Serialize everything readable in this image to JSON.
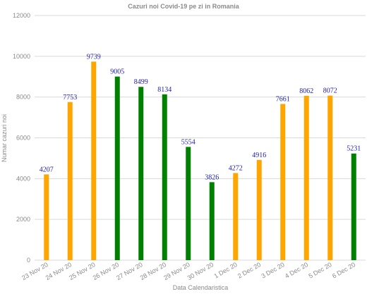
{
  "chart_data": {
    "type": "bar",
    "title": "Cazuri noi Covid-19 pe zi in Romania",
    "xlabel": "Data Calendaristica",
    "ylabel": "Numar cazuri noi",
    "ylim": [
      0,
      12000
    ],
    "yticks": [
      0,
      2000,
      4000,
      6000,
      8000,
      10000,
      12000
    ],
    "grid": true,
    "categories": [
      "23 Nov 20",
      "24 Nov 20",
      "25 Nov 20",
      "26 Nov 20",
      "27 Nov 20",
      "28 Nov 20",
      "29 Nov 20",
      "30 Nov 20",
      "1 Dec 20",
      "2 Dec 20",
      "3 Dec 20",
      "4 Dec 20",
      "5 Dec 20",
      "6 Dec 20"
    ],
    "values": [
      4207,
      7753,
      9739,
      9005,
      8499,
      8134,
      5554,
      3826,
      4272,
      4916,
      7661,
      8062,
      8072,
      5231
    ],
    "bar_colors": [
      "#ffa500",
      "#ffa500",
      "#ffa500",
      "#008000",
      "#008000",
      "#008000",
      "#008000",
      "#008000",
      "#ffa500",
      "#ffa500",
      "#ffa500",
      "#ffa500",
      "#ffa500",
      "#008000"
    ],
    "data_label_color": "#1d1db0"
  }
}
